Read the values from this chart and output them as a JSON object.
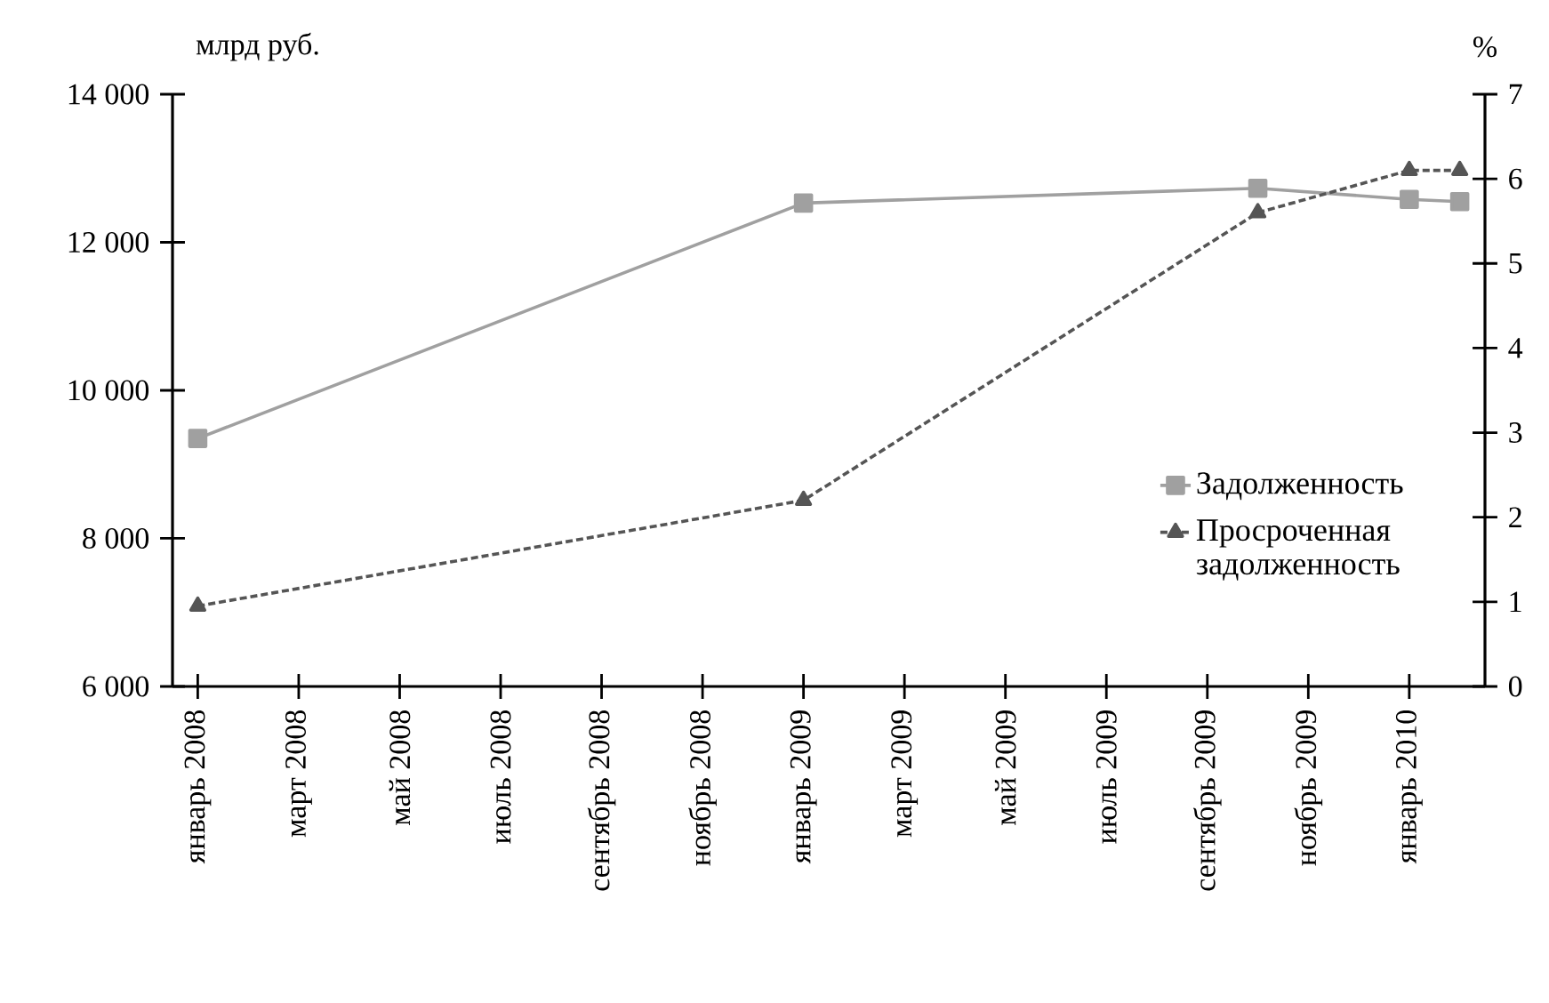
{
  "chart_data": {
    "type": "line",
    "ylabel": "млрд руб.",
    "y2label": "%",
    "xlim": [
      "2007-12-15",
      "2010-02-15"
    ],
    "xticks": [
      {
        "value": "2008-01",
        "label": "январь 2008"
      },
      {
        "value": "2008-03",
        "label": "март 2008"
      },
      {
        "value": "2008-05",
        "label": "май 2008"
      },
      {
        "value": "2008-07",
        "label": "июль 2008"
      },
      {
        "value": "2008-09",
        "label": "сентябрь 2008"
      },
      {
        "value": "2008-11",
        "label": "ноябрь 2008"
      },
      {
        "value": "2009-01",
        "label": "январь 2009"
      },
      {
        "value": "2009-03",
        "label": "март 2009"
      },
      {
        "value": "2009-05",
        "label": "май 2009"
      },
      {
        "value": "2009-07",
        "label": "июль 2009"
      },
      {
        "value": "2009-09",
        "label": "сентябрь 2009"
      },
      {
        "value": "2009-11",
        "label": "ноябрь 2009"
      },
      {
        "value": "2010-01",
        "label": "январь 2010"
      }
    ],
    "ylim": [
      6000,
      14000
    ],
    "yticks": [
      {
        "value": 6000,
        "label": "6 000"
      },
      {
        "value": 8000,
        "label": "8 000"
      },
      {
        "value": 10000,
        "label": "10 000"
      },
      {
        "value": 12000,
        "label": "12 000"
      },
      {
        "value": 14000,
        "label": "14 000"
      }
    ],
    "y2lim": [
      0,
      7
    ],
    "y2ticks": [
      0,
      1,
      2,
      3,
      4,
      5,
      6,
      7
    ],
    "legend": "right",
    "series": [
      {
        "name": "Задолженность",
        "color": "#a0a0a0",
        "marker": "square",
        "line_style": "solid",
        "x": [
          "2008-01",
          "2009-01",
          "2009-10",
          "2010-01",
          "2010-02"
        ],
        "values": [
          9350,
          12530,
          12730,
          12580,
          12550
        ]
      },
      {
        "name": "Просроченная задолженность",
        "color": "#555555",
        "marker": "triangle",
        "line_style": "dashed",
        "axis": "y2",
        "x": [
          "2008-01",
          "2009-01",
          "2009-10",
          "2010-01",
          "2010-02"
        ],
        "values": [
          0.95,
          2.2,
          5.6,
          6.1,
          6.1
        ]
      }
    ]
  }
}
